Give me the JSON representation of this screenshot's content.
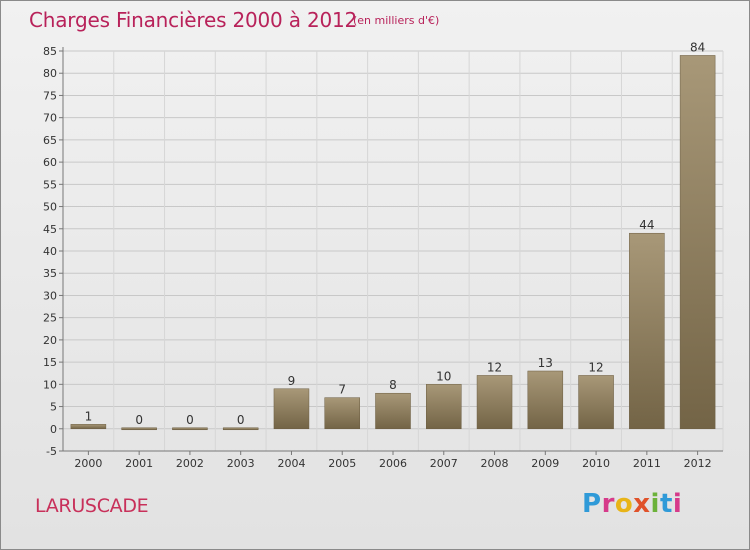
{
  "header": {
    "title": "Charges Financières 2000 à 2012",
    "subtitle": "(en milliers d'€)"
  },
  "footer": {
    "commune": "LARUSCADE",
    "logo_text": "Proxiti"
  },
  "colors": {
    "title": "#b8225a",
    "bar_top": "#a89878",
    "bar_bottom": "#736446",
    "grid": "#c8c8c8"
  },
  "chart_data": {
    "type": "bar",
    "title": "Charges Financières 2000 à 2012",
    "subtitle": "(en milliers d'€)",
    "xlabel": "",
    "ylabel": "",
    "categories": [
      "2000",
      "2001",
      "2002",
      "2003",
      "2004",
      "2005",
      "2006",
      "2007",
      "2008",
      "2009",
      "2010",
      "2011",
      "2012"
    ],
    "values": [
      1,
      0,
      0,
      0,
      9,
      7,
      8,
      10,
      12,
      13,
      12,
      44,
      84
    ],
    "value_labels": [
      "1",
      "0",
      "0",
      "0",
      "9",
      "7",
      "8",
      "10",
      "12",
      "13",
      "12",
      "44",
      "84"
    ],
    "ylim": [
      -5,
      85
    ],
    "yticks": [
      -5,
      0,
      5,
      10,
      15,
      20,
      25,
      30,
      35,
      40,
      45,
      50,
      55,
      60,
      65,
      70,
      75,
      80,
      85
    ],
    "grid": true,
    "legend": "none"
  }
}
